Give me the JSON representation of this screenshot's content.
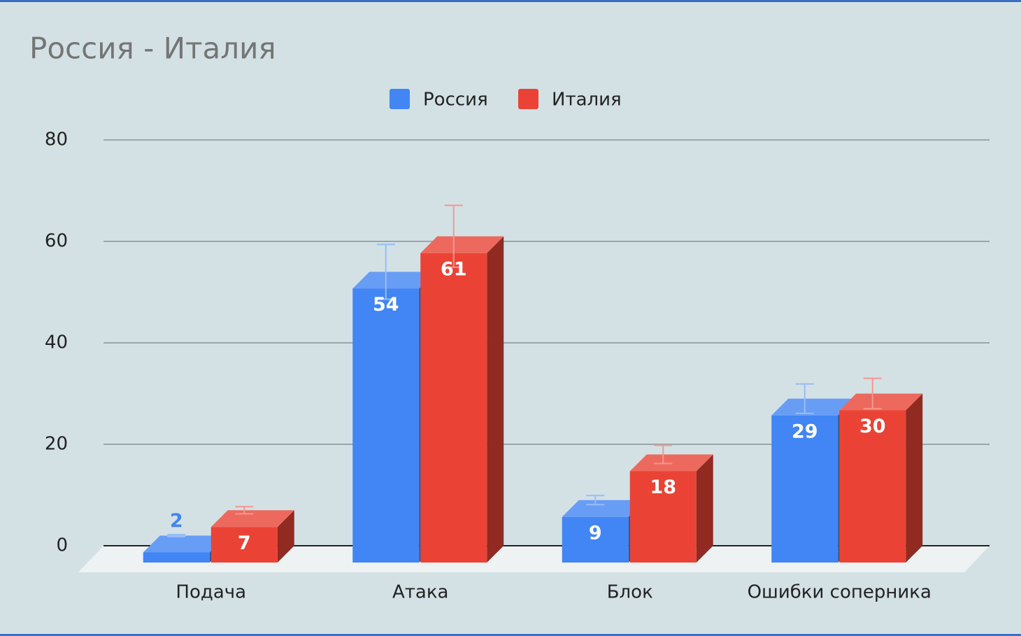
{
  "chart_data": {
    "type": "bar3d",
    "title": "Россия - Италия",
    "categories": [
      "Подача",
      "Атака",
      "Блок",
      "Ошибки соперника"
    ],
    "series": [
      {
        "name": "Россия",
        "color": "#4285f4",
        "values": [
          2,
          54,
          9,
          29
        ],
        "errors": [
          0.2,
          5.4,
          0.9,
          2.9
        ]
      },
      {
        "name": "Италия",
        "color": "#ea4335",
        "values": [
          7,
          61,
          18,
          30
        ],
        "errors": [
          0.7,
          6.1,
          1.8,
          3.0
        ]
      }
    ],
    "ylim": [
      0,
      80
    ],
    "yticks": [
      0,
      20,
      40,
      60,
      80
    ],
    "grid": true,
    "legend": "top"
  }
}
